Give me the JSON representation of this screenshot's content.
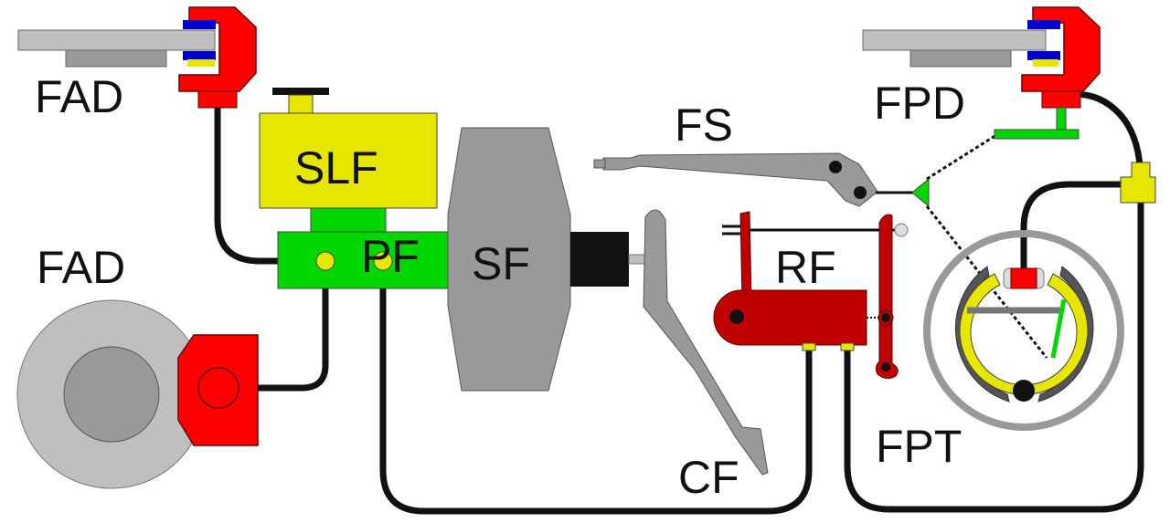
{
  "labels": {
    "fad_top": "FAD",
    "fad_bottom": "FAD",
    "slf": "SLF",
    "pf": "PF",
    "sf": "SF",
    "fs": "FS",
    "fpd": "FPD",
    "rf": "RF",
    "cf": "CF",
    "fpt": "FPT"
  },
  "colors": {
    "red": "#ff0000",
    "dark_red": "#c00000",
    "yellow": "#e6e600",
    "green": "#00d600",
    "gray_light": "#bfbfbf",
    "gray": "#999999",
    "gray_dark": "#808080",
    "blue": "#0000cc",
    "black": "#000000"
  }
}
